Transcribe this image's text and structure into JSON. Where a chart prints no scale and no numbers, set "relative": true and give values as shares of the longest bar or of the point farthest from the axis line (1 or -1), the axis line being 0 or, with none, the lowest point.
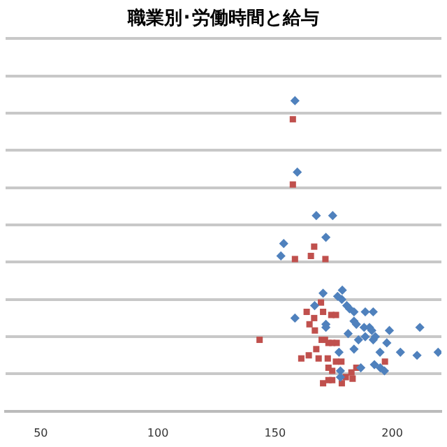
{
  "chart_data": {
    "type": "scatter",
    "title": "職業別･労働時間と給与",
    "relative": true,
    "xlim": [
      35,
      221
    ],
    "xticks": [
      50,
      100,
      150,
      200
    ],
    "grid": "y",
    "legend": false,
    "series": [
      {
        "color": "#4f81bd",
        "marker": "diamond",
        "x": [
          158.5,
          159.5,
          167.6,
          174.6,
          171.7,
          153.7,
          152.5,
          170.5,
          178.7,
          176.7,
          178.5,
          180.6,
          181.8,
          183.7,
          188.5,
          191.9,
          166.9,
          158.5,
          171.7,
          171.7,
          183.7,
          184.7,
          188.0,
          190.3,
          191.3,
          198.8,
          211.8,
          181.2,
          185.6,
          188.5,
          192.8,
          191.9,
          197.7,
          183.7,
          177.3,
          194.8,
          203.5,
          219.6,
          210.6,
          192.4,
          194.9,
          196.7,
          186.6,
          177.9,
          177.9
        ],
        "values": [
          1.0,
          0.77,
          0.63,
          0.63,
          0.56,
          0.54,
          0.5,
          0.38,
          0.39,
          0.37,
          0.36,
          0.34,
          0.33,
          0.32,
          0.32,
          0.32,
          0.34,
          0.3,
          0.28,
          0.27,
          0.29,
          0.28,
          0.27,
          0.27,
          0.26,
          0.26,
          0.27,
          0.25,
          0.23,
          0.24,
          0.24,
          0.23,
          0.22,
          0.2,
          0.19,
          0.19,
          0.19,
          0.19,
          0.18,
          0.15,
          0.14,
          0.13,
          0.14,
          0.13,
          0.11
        ]
      },
      {
        "color": "#c0504d",
        "marker": "square",
        "x": [
          157.6,
          157.6,
          166.7,
          158.5,
          165.3,
          171.5,
          143.4,
          163.5,
          169.6,
          164.7,
          166.7,
          167.0,
          170.5,
          174.0,
          176.0,
          169.9,
          171.3,
          172.8,
          176.3,
          174.4,
          167.6,
          164.4,
          161.2,
          168.6,
          172.5,
          176.0,
          178.3,
          172.8,
          174.4,
          184.7,
          180.2,
          183.1,
          182.6,
          196.9,
          170.5,
          172.8,
          174.4,
          178.5
        ],
        "values": [
          0.94,
          0.73,
          0.53,
          0.49,
          0.5,
          0.49,
          0.23,
          0.32,
          0.35,
          0.28,
          0.3,
          0.26,
          0.32,
          0.31,
          0.31,
          0.23,
          0.23,
          0.22,
          0.22,
          0.22,
          0.2,
          0.18,
          0.17,
          0.17,
          0.17,
          0.16,
          0.16,
          0.14,
          0.13,
          0.14,
          0.11,
          0.105,
          0.125,
          0.16,
          0.09,
          0.1,
          0.1,
          0.09
        ]
      }
    ]
  }
}
